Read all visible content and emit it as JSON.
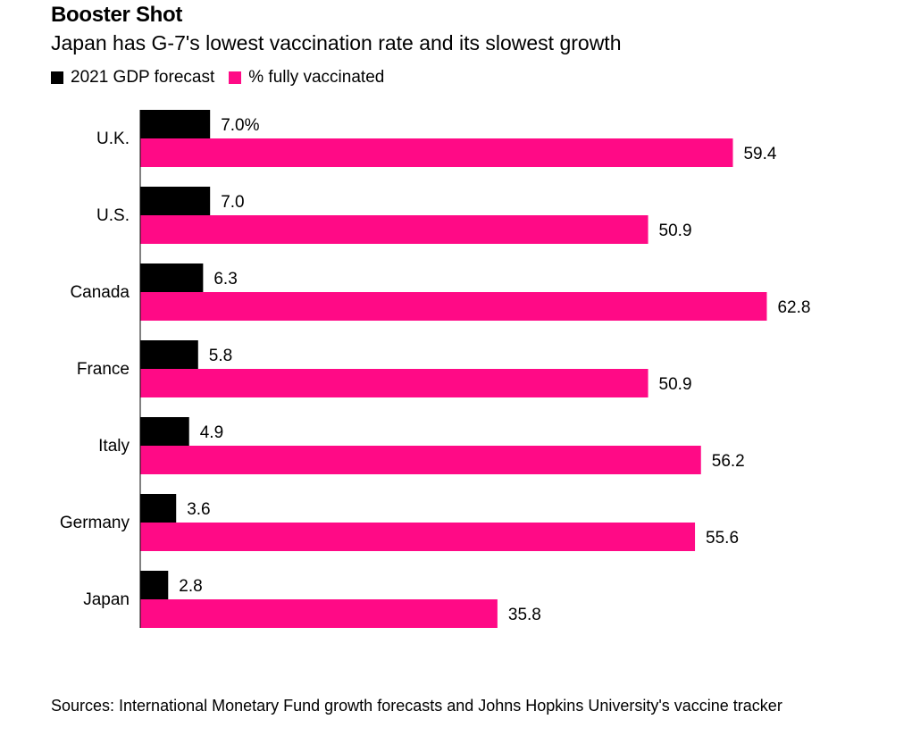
{
  "chart_data": {
    "type": "bar",
    "orientation": "horizontal",
    "title": "Booster Shot",
    "subtitle": "Japan has G-7's lowest vaccination rate and its slowest growth",
    "categories": [
      "U.K.",
      "U.S.",
      "Canada",
      "France",
      "Italy",
      "Germany",
      "Japan"
    ],
    "series": [
      {
        "name": "2021 GDP forecast",
        "color": "#000000",
        "values": [
          7.0,
          7.0,
          6.3,
          5.8,
          4.9,
          3.6,
          2.8
        ],
        "labels": [
          "7.0%",
          "7.0",
          "6.3",
          "5.8",
          "4.9",
          "3.6",
          "2.8"
        ]
      },
      {
        "name": "% fully vaccinated",
        "color": "#ff0a86",
        "values": [
          59.4,
          50.9,
          62.8,
          50.9,
          56.2,
          55.6,
          35.8
        ],
        "labels": [
          "59.4",
          "50.9",
          "62.8",
          "50.9",
          "56.2",
          "55.6",
          "35.8"
        ]
      }
    ],
    "xlim": [
      0,
      70
    ],
    "legend_position": "top-left",
    "source": "Sources: International Monetary Fund growth forecasts and Johns Hopkins University's vaccine tracker"
  }
}
